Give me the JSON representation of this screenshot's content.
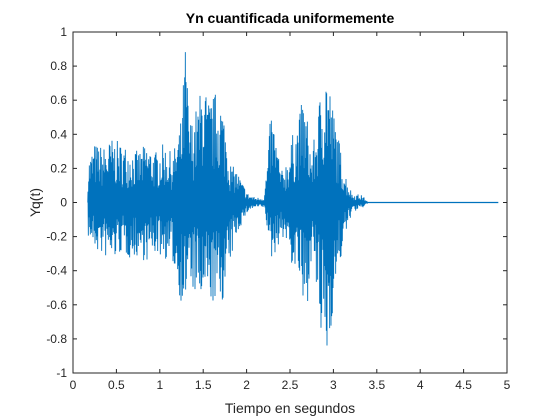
{
  "chart_data": {
    "type": "line",
    "title": "Yn cuantificada uniformemente",
    "xlabel": "Tiempo en segundos",
    "ylabel": "Yq(t)",
    "xlim": [
      0,
      5
    ],
    "ylim": [
      -1,
      1
    ],
    "xticks": [
      "0",
      "0.5",
      "1",
      "1.5",
      "2",
      "2.5",
      "3",
      "3.5",
      "4",
      "4.5",
      "5"
    ],
    "yticks": [
      "-1",
      "-0.8",
      "-0.6",
      "-0.4",
      "-0.2",
      "0",
      "0.2",
      "0.4",
      "0.6",
      "0.8",
      "1"
    ],
    "grid": false,
    "color": "#0072BD",
    "series": [
      {
        "x": [
          0.17,
          0.25,
          0.35,
          0.45,
          0.55,
          0.65,
          0.75,
          0.85,
          0.95,
          1.05,
          1.15,
          1.25,
          1.3,
          1.33,
          1.36,
          1.45,
          1.5,
          1.55,
          1.62,
          1.68,
          1.75,
          1.82,
          1.88,
          1.95,
          2.02,
          2.1,
          2.15,
          2.2,
          2.25,
          2.28,
          2.33,
          2.4,
          2.48,
          2.53,
          2.6,
          2.65,
          2.7,
          2.75,
          2.8,
          2.86,
          2.93,
          2.98,
          3.03,
          3.1,
          3.16,
          3.22,
          3.28,
          3.34,
          3.4,
          3.6,
          4.0,
          4.5,
          4.9
        ],
        "ymax": [
          0.25,
          0.35,
          0.33,
          0.38,
          0.35,
          0.33,
          0.3,
          0.35,
          0.3,
          0.35,
          0.28,
          0.5,
          1.0,
          0.55,
          0.48,
          0.6,
          0.78,
          0.6,
          0.63,
          0.7,
          0.5,
          0.22,
          0.2,
          0.12,
          0.05,
          0.03,
          0.03,
          0.03,
          0.3,
          0.55,
          0.43,
          0.18,
          0.28,
          0.4,
          0.5,
          0.63,
          0.5,
          0.28,
          0.45,
          0.7,
          0.86,
          0.6,
          0.48,
          0.26,
          0.13,
          0.05,
          0.05,
          0.04,
          0.0,
          0.0,
          0.0,
          0.0,
          0.0
        ],
        "ymin": [
          -0.2,
          -0.28,
          -0.32,
          -0.35,
          -0.3,
          -0.33,
          -0.32,
          -0.35,
          -0.3,
          -0.33,
          -0.36,
          -0.6,
          -0.6,
          -0.45,
          -0.5,
          -0.6,
          -0.62,
          -0.58,
          -0.6,
          -0.63,
          -0.55,
          -0.34,
          -0.2,
          -0.12,
          -0.05,
          -0.03,
          -0.03,
          -0.03,
          -0.2,
          -0.35,
          -0.3,
          -0.2,
          -0.25,
          -0.4,
          -0.42,
          -0.7,
          -0.6,
          -0.3,
          -0.52,
          -0.85,
          -0.94,
          -0.7,
          -0.5,
          -0.3,
          -0.15,
          -0.05,
          -0.05,
          -0.03,
          0.0,
          0.0,
          0.0,
          0.0,
          0.0
        ]
      }
    ]
  }
}
